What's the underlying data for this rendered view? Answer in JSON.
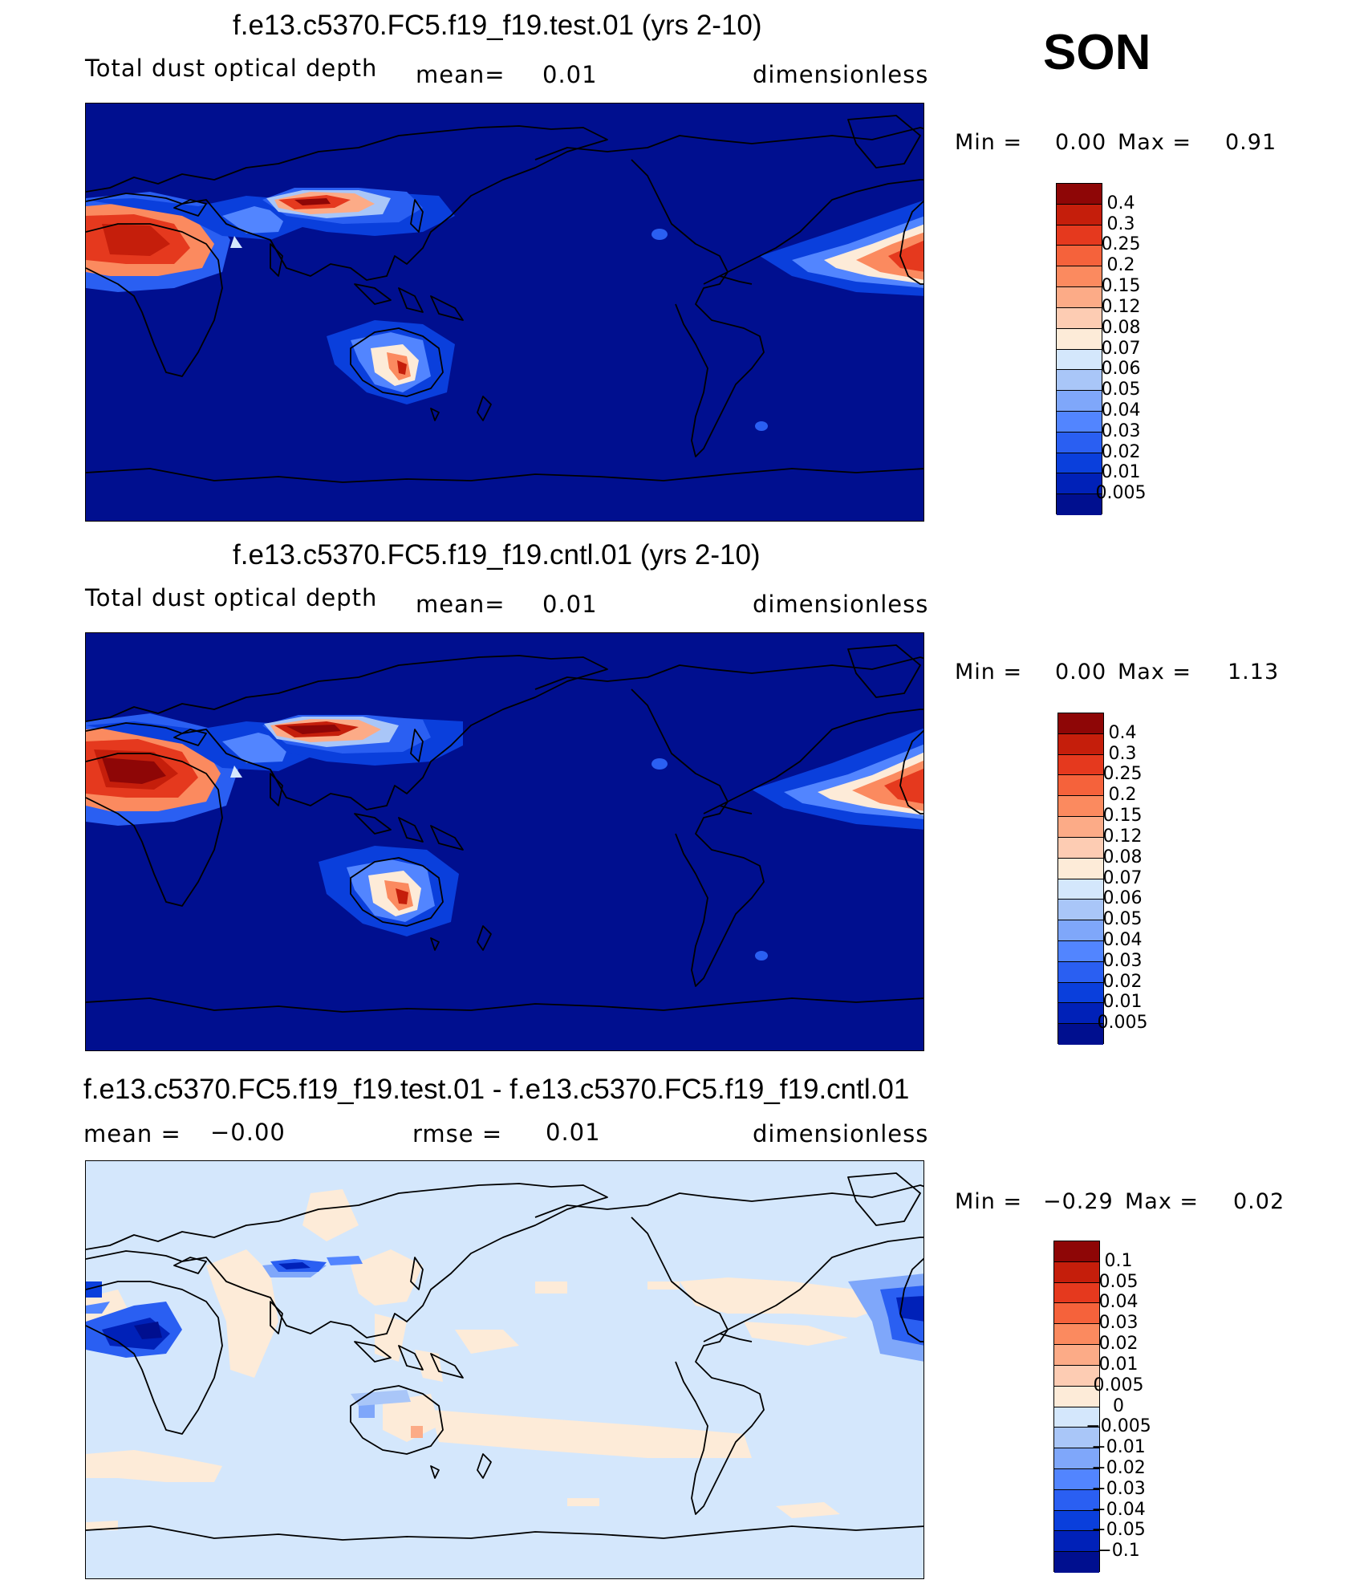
{
  "season": "SON",
  "colors": {
    "abs": [
      "#000f8f",
      "#0021b8",
      "#0a3fdc",
      "#2a5ff2",
      "#5285ff",
      "#7fa7fa",
      "#a9c6f8",
      "#d4e7fc",
      "#fdebd8",
      "#fdccb3",
      "#fcab87",
      "#fb8a5f",
      "#f5623b",
      "#e5391e",
      "#c51e0b",
      "#8e0606"
    ],
    "diff": [
      "#000f8f",
      "#0021b8",
      "#0a3fdc",
      "#2a5ff2",
      "#5285ff",
      "#7fa7fa",
      "#a9c6f8",
      "#d4e7fc",
      "#fdebd8",
      "#fdccb3",
      "#fcab87",
      "#fb8a5f",
      "#f5623b",
      "#e5391e",
      "#c51e0b",
      "#8e0606"
    ]
  },
  "panels": [
    {
      "title": "f.e13.c5370.FC5.f19_f19.test.01 (yrs 2-10)",
      "variable": "Total dust optical depth",
      "mean_label": "mean=",
      "mean_value": "0.01",
      "units": "dimensionless",
      "min_label": "Min =",
      "min_value": "0.00",
      "max_label": "Max =",
      "max_value": "0.91",
      "levels": [
        "0.4",
        "0.3",
        "0.25",
        "0.2",
        "0.15",
        "0.12",
        "0.08",
        "0.07",
        "0.06",
        "0.05",
        "0.04",
        "0.03",
        "0.02",
        "0.01",
        "0.005"
      ]
    },
    {
      "title": "f.e13.c5370.FC5.f19_f19.cntl.01 (yrs 2-10)",
      "variable": "Total dust optical depth",
      "mean_label": "mean=",
      "mean_value": "0.01",
      "units": "dimensionless",
      "min_label": "Min =",
      "min_value": "0.00",
      "max_label": "Max =",
      "max_value": "1.13",
      "levels": [
        "0.4",
        "0.3",
        "0.25",
        "0.2",
        "0.15",
        "0.12",
        "0.08",
        "0.07",
        "0.06",
        "0.05",
        "0.04",
        "0.03",
        "0.02",
        "0.01",
        "0.005"
      ]
    },
    {
      "title": "f.e13.c5370.FC5.f19_f19.test.01 - f.e13.c5370.FC5.f19_f19.cntl.01",
      "mean_label": "mean =",
      "mean_value": "−0.00",
      "rmse_label": "rmse =",
      "rmse_value": "0.01",
      "units": "dimensionless",
      "min_label": "Min =",
      "min_value": "−0.29",
      "max_label": "Max =",
      "max_value": "0.02",
      "levels": [
        "0.1",
        "0.05",
        "0.04",
        "0.03",
        "0.02",
        "0.01",
        "0.005",
        "0",
        "−0.005",
        "−0.01",
        "−0.02",
        "−0.03",
        "−0.04",
        "−0.05",
        "−0.1"
      ]
    }
  ]
}
